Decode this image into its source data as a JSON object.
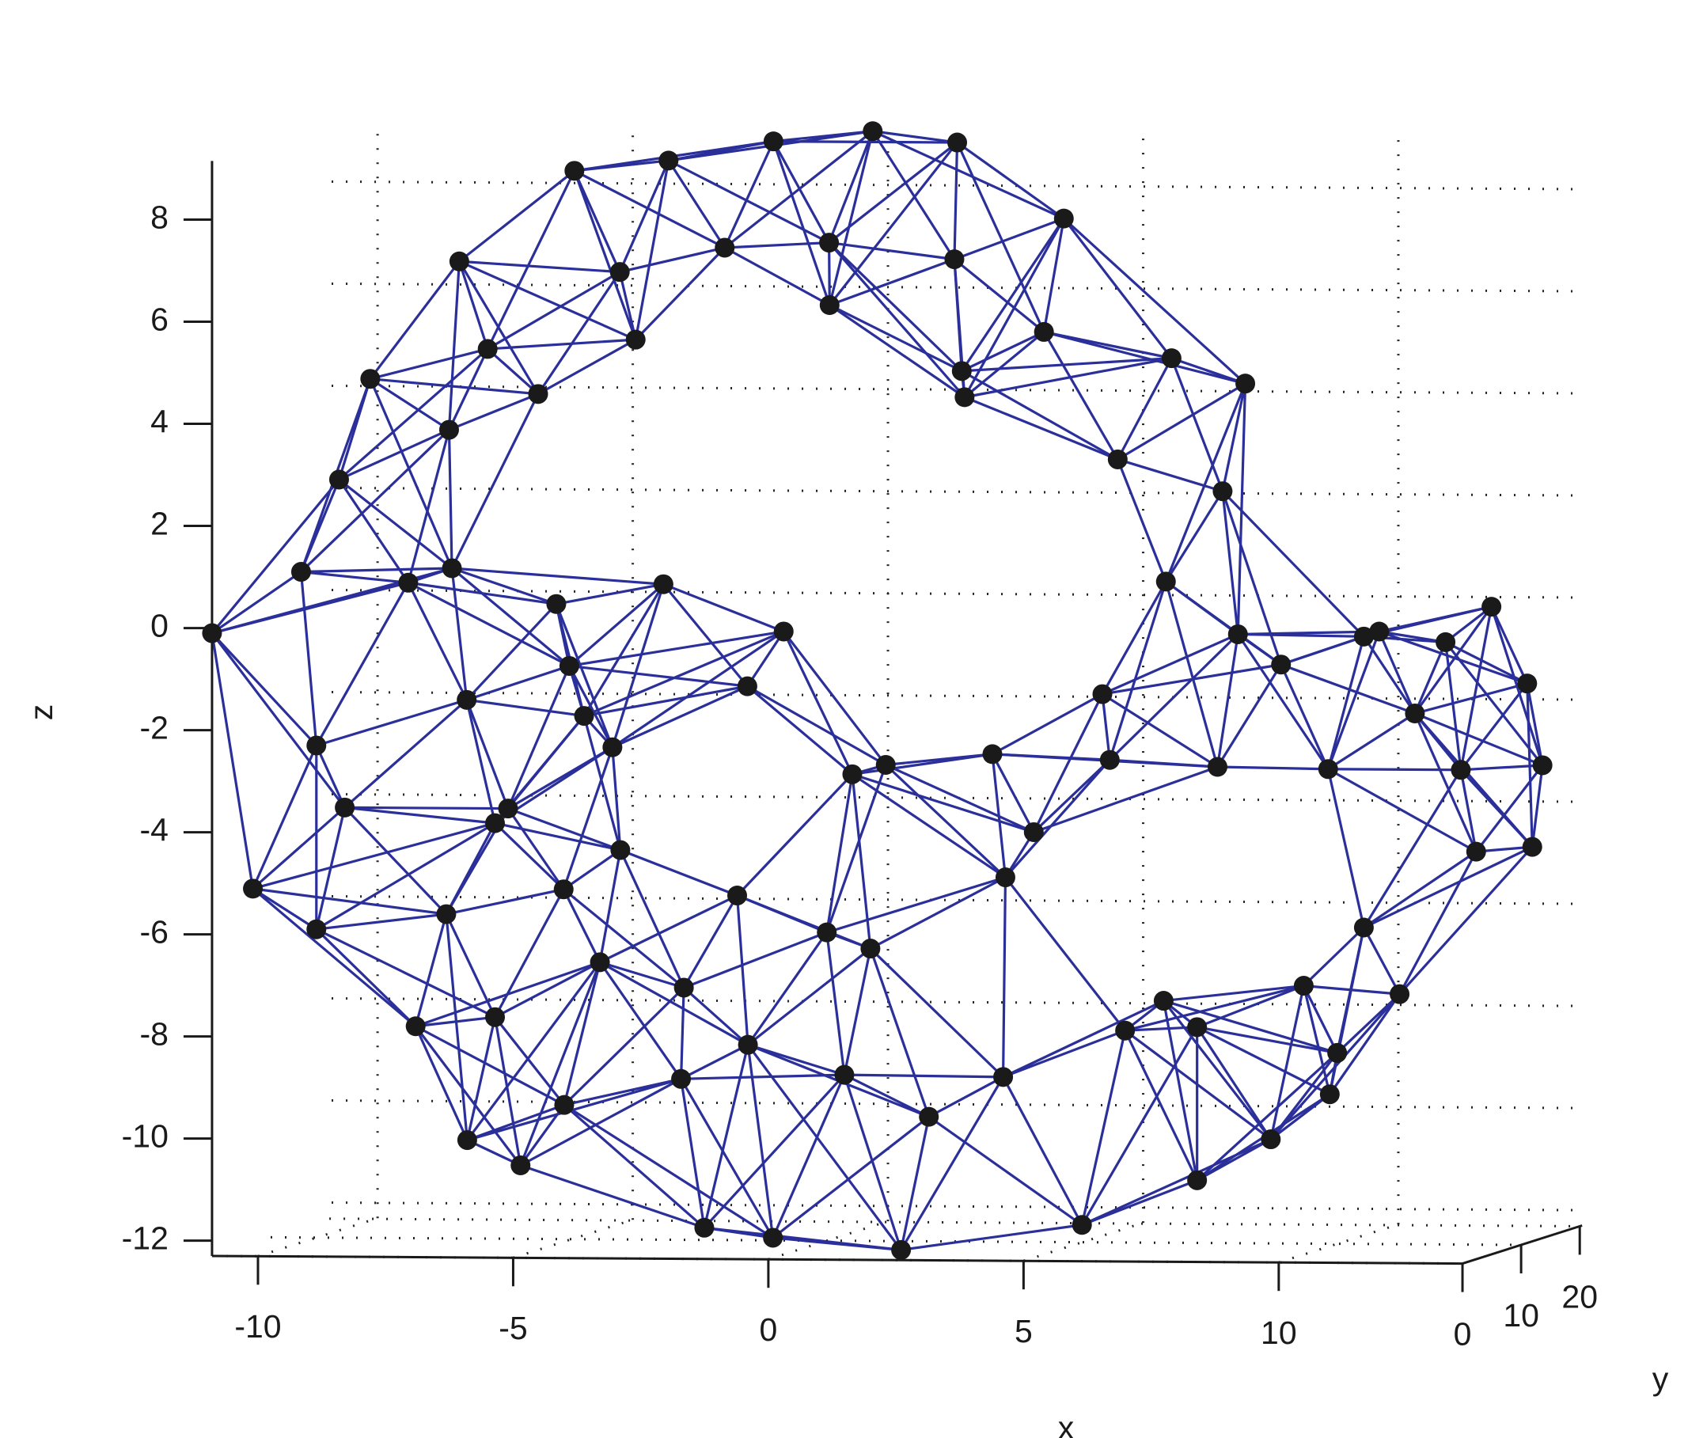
{
  "chart_data": {
    "type": "scatter3d",
    "xlabel": "x",
    "ylabel": "y",
    "zlabel": "z",
    "xlim": [
      -10.9,
      13.6
    ],
    "ylim": [
      0,
      20.4
    ],
    "zlim": [
      -12.3,
      9.15
    ],
    "xticks": [
      -10,
      -5,
      0,
      5,
      10
    ],
    "yticks": [
      0,
      10,
      20
    ],
    "zticks": [
      -12,
      -10,
      -8,
      -6,
      -4,
      -2,
      0,
      2,
      4,
      6,
      8
    ],
    "grid": true,
    "point_color": "#1a1a1a",
    "edge_color": "#2b2f9a",
    "x": [
      -10.1,
      -9.2,
      -7.6,
      -5.9,
      -5.2,
      -0.6,
      2.6,
      5.8,
      8.4,
      9.5,
      11,
      10.8,
      9.8,
      8.4,
      7.4,
      6.3,
      4.6,
      2.8,
      0.8,
      -0.4,
      -1.6,
      -2.4,
      -4,
      -5.7,
      -7,
      -8.3,
      -9.2,
      -10.9,
      -9.5,
      -9.1,
      -7.8,
      -7.4,
      -6.6,
      -6.2,
      -6.6,
      -5.2,
      -5.5,
      -6.4,
      -3.8,
      -2.3,
      -3.6,
      -2.6,
      -1.2,
      0.1,
      1.7,
      0.5,
      1.2,
      3.7,
      3.3,
      5.1,
      5.4,
      3.5,
      3.1,
      7.9,
      9,
      8.9,
      6.5,
      7.1,
      9.2,
      9.7,
      8.8,
      6.2,
      6,
      5.2,
      4.3,
      3.7,
      2.3,
      1.3,
      2,
      0.8,
      -1.3,
      -2.9,
      -3.4,
      -4.3,
      -3.9,
      -2.4,
      -1.1,
      0.3,
      -4.5,
      -5.1,
      -5.7,
      -4.7,
      -3.3,
      -2,
      8.9,
      9.6,
      9.9,
      11.2,
      12.1,
      12.8,
      13.1,
      12.9,
      11.8,
      11.5,
      10.6,
      10.3,
      9.6
    ],
    "y": [
      0,
      3,
      6,
      0,
      3,
      6,
      0,
      3,
      0,
      3,
      0,
      3,
      6,
      0,
      3,
      6,
      0,
      3,
      6,
      0,
      3,
      6,
      0,
      3,
      6,
      0,
      3,
      0,
      3,
      6,
      0,
      3,
      6,
      0,
      3,
      6,
      0,
      3,
      0,
      3,
      6,
      0,
      3,
      0,
      3,
      6,
      0,
      0,
      3,
      6,
      0,
      3,
      6,
      0,
      3,
      0,
      3,
      6,
      0,
      3,
      0,
      3,
      6,
      0,
      3,
      6,
      0,
      3,
      0,
      3,
      6,
      0,
      3,
      6,
      0,
      3,
      6,
      0,
      3,
      0,
      3,
      6,
      0,
      3,
      18,
      18,
      18,
      18,
      18,
      18,
      18,
      18,
      18,
      18,
      18,
      18,
      18
    ],
    "z": [
      -5.1,
      -6,
      -8,
      -10,
      -10.6,
      -12.1,
      -12.1,
      -11.7,
      -10.7,
      -10,
      -9,
      -8.3,
      -7.1,
      -7.7,
      -7.3,
      -8,
      -8.7,
      -9.6,
      -8.9,
      -8.1,
      -11.8,
      -9,
      -9.3,
      -7.7,
      -5.8,
      -3.5,
      -2.4,
      -0.1,
      1,
      2.7,
      4.9,
      0.8,
      -1.6,
      1.2,
      3.8,
      4.4,
      5.5,
      7.1,
      9,
      9.1,
      6.8,
      5.7,
      7.4,
      9.6,
      9.7,
      7.4,
      6.4,
      9.6,
      7.2,
      7.9,
      5.9,
      4.5,
      4.9,
      5.4,
      4.8,
      2.8,
      3.3,
      0.8,
      0,
      -0.7,
      -2.6,
      -1.3,
      -2.7,
      -3.9,
      -4.9,
      -2.6,
      -2.6,
      -2.9,
      -6.2,
      -6,
      -5.4,
      -4.3,
      -2.4,
      -1.9,
      -0.7,
      0.8,
      -1.3,
      0,
      0.4,
      -3.5,
      -3.9,
      -5.3,
      -6.5,
      -7.1,
      -3.3,
      -0.7,
      -0.6,
      -0.8,
      -0.1,
      -1.6,
      -3.2,
      -4.8,
      -4.9,
      -3.3,
      -2.2,
      -7.7,
      -6.4
    ]
  }
}
